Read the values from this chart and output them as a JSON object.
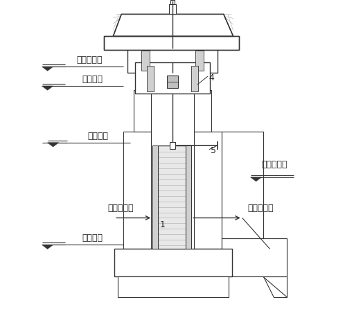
{
  "labels": {
    "jijia": "机架桥高程",
    "dingding": "墩顶高程",
    "sheji": "设计水位",
    "beishui": "背水面水位",
    "zhengxiang": "正向挡水面",
    "fanxiang": "反向挡水面",
    "jiandi": "闸底高程",
    "num1": "1",
    "num4": "4",
    "num5": "5"
  },
  "font_size": 9,
  "lc": "#333333",
  "hc": "#aaaaaa",
  "fc_white": "#ffffff",
  "fc_gray": "#cccccc",
  "fc_dark": "#999999"
}
